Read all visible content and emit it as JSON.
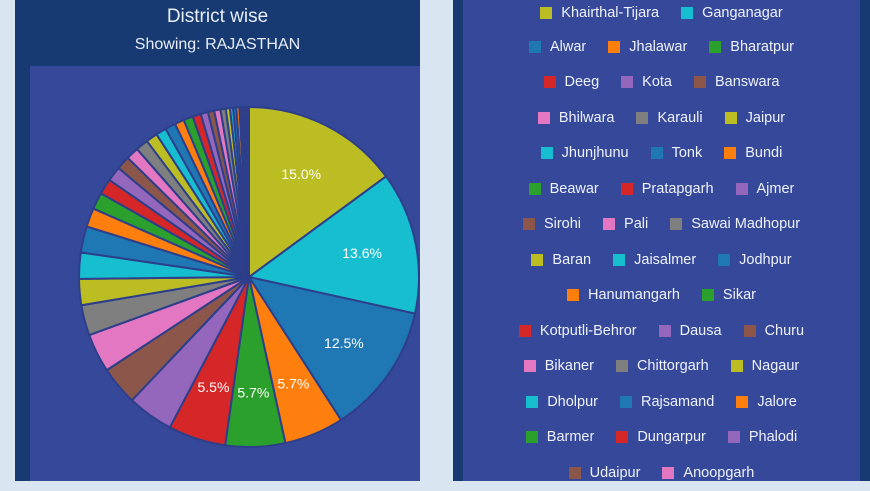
{
  "header": {
    "title": "District wise",
    "subtitle": "Showing: RAJASTHAN"
  },
  "chart_data": {
    "type": "pie",
    "title": "District wise",
    "subtitle": "Showing: RAJASTHAN",
    "categories": [
      "Khairthal-Tijara",
      "Ganganagar",
      "Alwar",
      "Jhalawar",
      "Bharatpur",
      "Deeg",
      "Kota",
      "Banswara",
      "Bhilwara",
      "Karauli",
      "Jaipur",
      "Jhunjhunu",
      "Tonk",
      "Bundi",
      "Beawar",
      "Pratapgarh",
      "Ajmer",
      "Sirohi",
      "Pali",
      "Sawai Madhopur",
      "Baran",
      "Jaisalmer",
      "Jodhpur",
      "Hanumangarh",
      "Sikar",
      "Kotputli-Behror",
      "Dausa",
      "Churu",
      "Bikaner",
      "Chittorgarh",
      "Nagaur",
      "Dholpur",
      "Rajsamand",
      "Jalore",
      "Barmer",
      "Dungarpur",
      "Phalodi",
      "Udaipur",
      "Anoopgarh"
    ],
    "values": [
      15.0,
      13.6,
      12.5,
      5.7,
      5.7,
      5.5,
      4.4,
      3.7,
      3.7,
      2.9,
      2.5,
      2.5,
      2.5,
      1.8,
      1.6,
      1.5,
      1.4,
      1.3,
      1.2,
      1.2,
      1.1,
      1.0,
      1.0,
      0.9,
      0.9,
      0.8,
      0.7,
      0.6,
      0.6,
      0.5,
      0.4,
      0.3,
      0.3,
      0.3,
      0.2,
      0.2,
      0.2,
      0.2,
      0.1
    ],
    "data_labels": {
      "Khairthal-Tijara": "15.0%",
      "Ganganagar": "13.6%",
      "Alwar": "12.5%",
      "Jhalawar": "5.7%",
      "Bharatpur": "5.7%",
      "Deeg": "5.5%"
    },
    "colors": [
      "#1f77b4",
      "#ff7f0e",
      "#2ca02c",
      "#d62728",
      "#9467bd",
      "#8c564b",
      "#e377c2",
      "#7f7f7f",
      "#bcbd22",
      "#17becf"
    ],
    "color_offset": 8,
    "legend_placement": "right"
  },
  "legend_rows": [
    [
      0,
      1
    ],
    [
      2,
      3,
      4
    ],
    [
      5,
      6,
      7
    ],
    [
      8,
      9,
      10
    ],
    [
      11,
      12,
      13
    ],
    [
      14,
      15,
      16
    ],
    [
      17,
      18,
      19
    ],
    [
      20,
      21,
      22
    ],
    [
      23,
      24
    ],
    [
      25,
      26,
      27
    ],
    [
      28,
      29,
      30
    ],
    [
      31,
      32,
      33
    ],
    [
      34,
      35,
      36
    ],
    [
      37,
      38
    ]
  ]
}
